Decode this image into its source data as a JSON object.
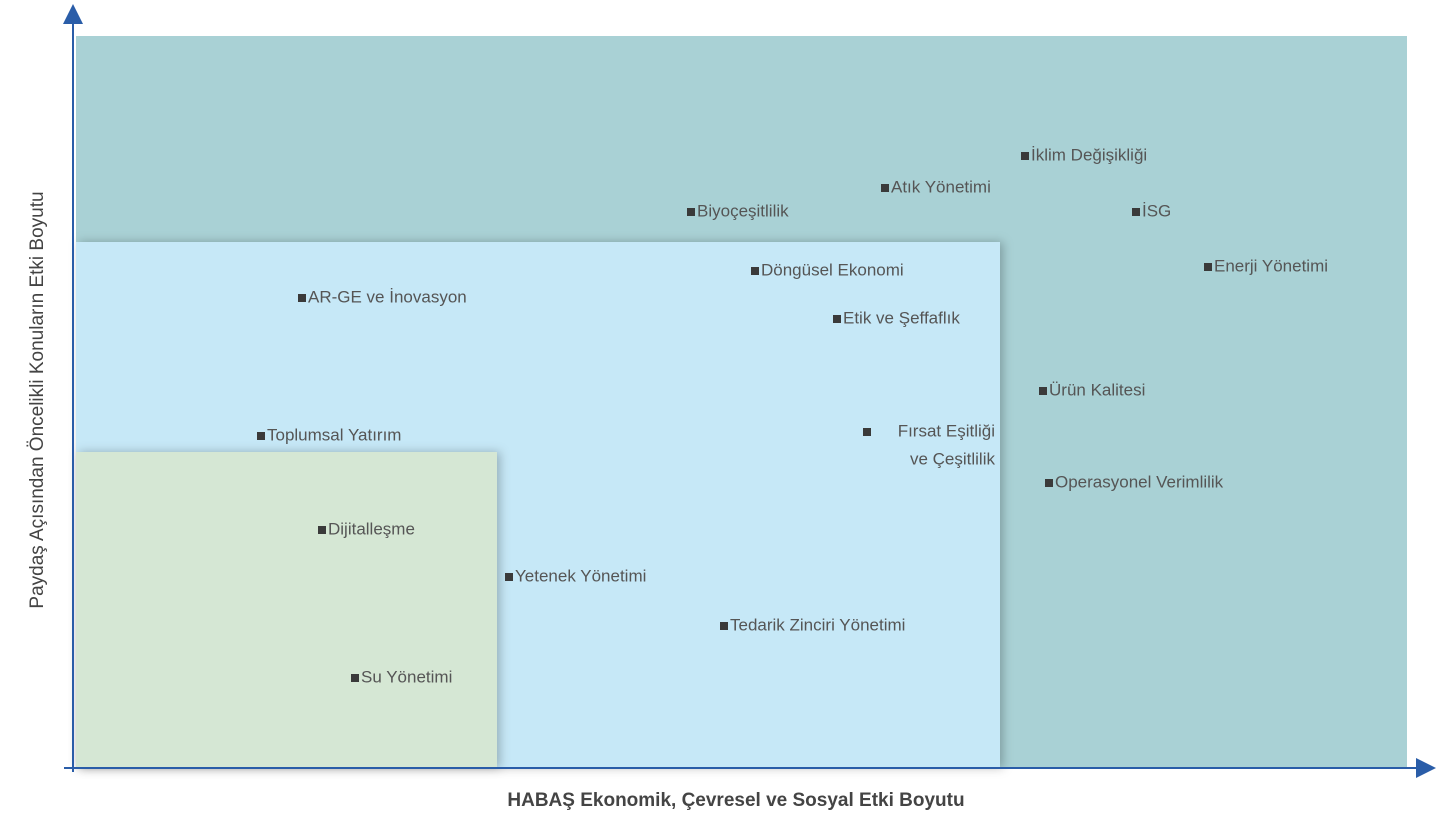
{
  "axes": {
    "x_title": "HABAŞ Ekonomik, Çevresel ve Sosyal Etki Boyutu",
    "y_title": "Paydaş Açısından Öncelikli Konuların Etki Boyutu"
  },
  "nodes": [
    {
      "label": "İklim Değişikliği"
    },
    {
      "label": "Atık Yönetimi"
    },
    {
      "label": "Biyoçeşitlilik"
    },
    {
      "label": "İSG"
    },
    {
      "label": "Enerji Yönetimi"
    },
    {
      "label": "Döngüsel Ekonomi"
    },
    {
      "label": "AR-GE ve İnovasyon"
    },
    {
      "label": "Etik ve Şeffaflık"
    },
    {
      "label": "Ürün Kalitesi"
    },
    {
      "label": "Toplumsal Yatırım"
    },
    {
      "lines": [
        "Fırsat Eşitliği",
        "ve Çeşitlilik"
      ]
    },
    {
      "label": "Operasyonel Verimlilik"
    },
    {
      "label": "Dijitalleşme"
    },
    {
      "label": "Yetenek Yönetimi"
    },
    {
      "label": "Tedarik Zinciri Yönetimi"
    },
    {
      "label": "Su Yönetimi"
    }
  ]
}
